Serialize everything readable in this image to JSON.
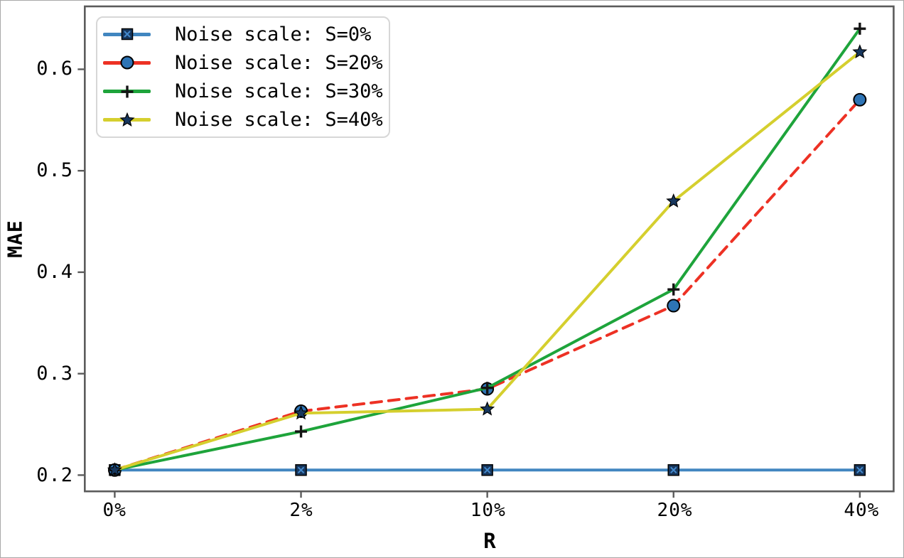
{
  "axes": {
    "x_title": "R",
    "y_title": "MAE"
  },
  "legend": {
    "position": "upper-left",
    "items": [
      "Noise scale: S=0%",
      "Noise scale: S=20%",
      "Noise scale: S=30%",
      "Noise scale: S=40%"
    ]
  },
  "chart_data": {
    "type": "line",
    "title": "",
    "xlabel": "R",
    "ylabel": "MAE",
    "categories": [
      "0%",
      "2%",
      "10%",
      "20%",
      "40%"
    ],
    "ytick_labels": [
      "0.2",
      "0.3",
      "0.4",
      "0.5",
      "0.6"
    ],
    "yticks": [
      0.2,
      0.3,
      0.4,
      0.5,
      0.6
    ],
    "ylim": [
      0.184,
      0.662
    ],
    "grid": false,
    "legend_position": "upper left",
    "series": [
      {
        "name": "Noise scale: S=0%",
        "color": "#4186c0",
        "line_style": "solid",
        "marker": "square-x",
        "values": [
          0.205,
          0.205,
          0.205,
          0.205,
          0.205
        ]
      },
      {
        "name": "Noise scale: S=20%",
        "color": "#ed3124",
        "line_style": "dashed",
        "marker": "circle",
        "values": [
          0.205,
          0.263,
          0.285,
          0.367,
          0.57
        ]
      },
      {
        "name": "Noise scale: S=30%",
        "color": "#1ea43b",
        "line_style": "solid",
        "marker": "plus",
        "values": [
          0.205,
          0.243,
          0.286,
          0.383,
          0.64
        ]
      },
      {
        "name": "Noise scale: S=40%",
        "color": "#d5cf2e",
        "line_style": "solid",
        "marker": "star",
        "values": [
          0.205,
          0.261,
          0.265,
          0.47,
          0.617
        ]
      }
    ],
    "marker_style": {
      "fill": "#17375e",
      "circle_fill": "#2e74b5",
      "edge": "#000000",
      "cross_accent": "#4489cc"
    },
    "spine_color": "#5b5b5b"
  }
}
